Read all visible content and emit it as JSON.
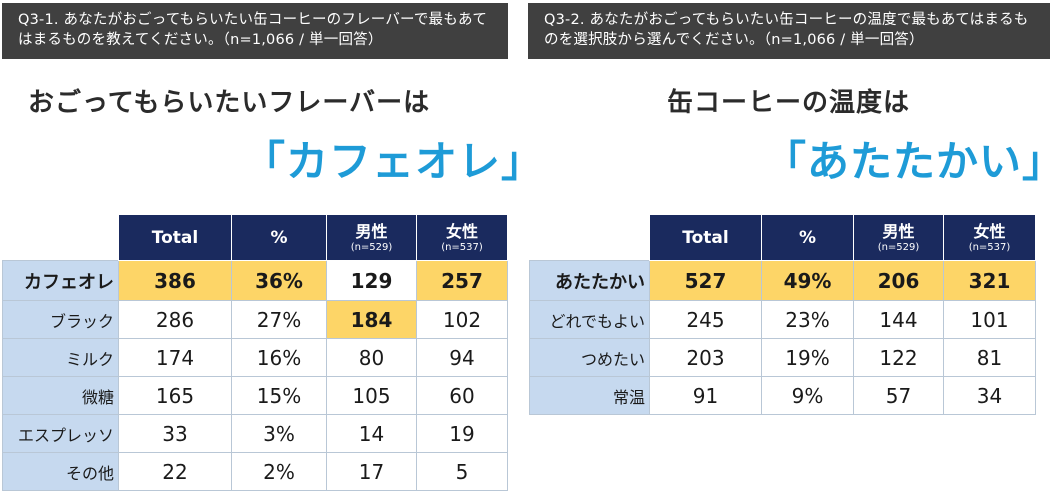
{
  "q1": {
    "question": "Q3-1. あなたがおごってもらいたい缶コーヒーのフレーバーで最もあてはまるものを教えてください。（n=1,066 /  単一回答）",
    "headline": "おごってもらいたいフレーバーは",
    "answer": "「カフェオレ」",
    "headers": {
      "total": "Total",
      "pct": "%",
      "male": "男性",
      "male_n": "(n=529)",
      "female": "女性",
      "female_n": "(n=537)"
    },
    "rows": [
      {
        "label": "カフェオレ",
        "total": "386",
        "pct": "36%",
        "male": "129",
        "female": "257"
      },
      {
        "label": "ブラック",
        "total": "286",
        "pct": "27%",
        "male": "184",
        "female": "102"
      },
      {
        "label": "ミルク",
        "total": "174",
        "pct": "16%",
        "male": "80",
        "female": "94"
      },
      {
        "label": "微糖",
        "total": "165",
        "pct": "15%",
        "male": "105",
        "female": "60"
      },
      {
        "label": "エスプレッソ",
        "total": "33",
        "pct": "3%",
        "male": "14",
        "female": "19"
      },
      {
        "label": "その他",
        "total": "22",
        "pct": "2%",
        "male": "17",
        "female": "5"
      }
    ]
  },
  "q2": {
    "question": "Q3-2. あなたがおごってもらいたい缶コーヒーの温度で最もあてはまるものを選択肢から選んでください。（n=1,066 /  単一回答）",
    "headline": "缶コーヒーの温度は",
    "answer": "「あたたかい」",
    "headers": {
      "total": "Total",
      "pct": "%",
      "male": "男性",
      "male_n": "(n=529)",
      "female": "女性",
      "female_n": "(n=537)"
    },
    "rows": [
      {
        "label": "あたたかい",
        "total": "527",
        "pct": "49%",
        "male": "206",
        "female": "321"
      },
      {
        "label": "どれでもよい",
        "total": "245",
        "pct": "23%",
        "male": "144",
        "female": "101"
      },
      {
        "label": "つめたい",
        "total": "203",
        "pct": "19%",
        "male": "122",
        "female": "81"
      },
      {
        "label": "常温",
        "total": "91",
        "pct": "9%",
        "male": "57",
        "female": "34"
      }
    ]
  },
  "colors": {
    "header_bg": "#1a2a5e",
    "highlight": "#fdd567",
    "label_bg": "#c6d9ef",
    "accent": "#1e9bd7",
    "question_bg": "#404040"
  }
}
